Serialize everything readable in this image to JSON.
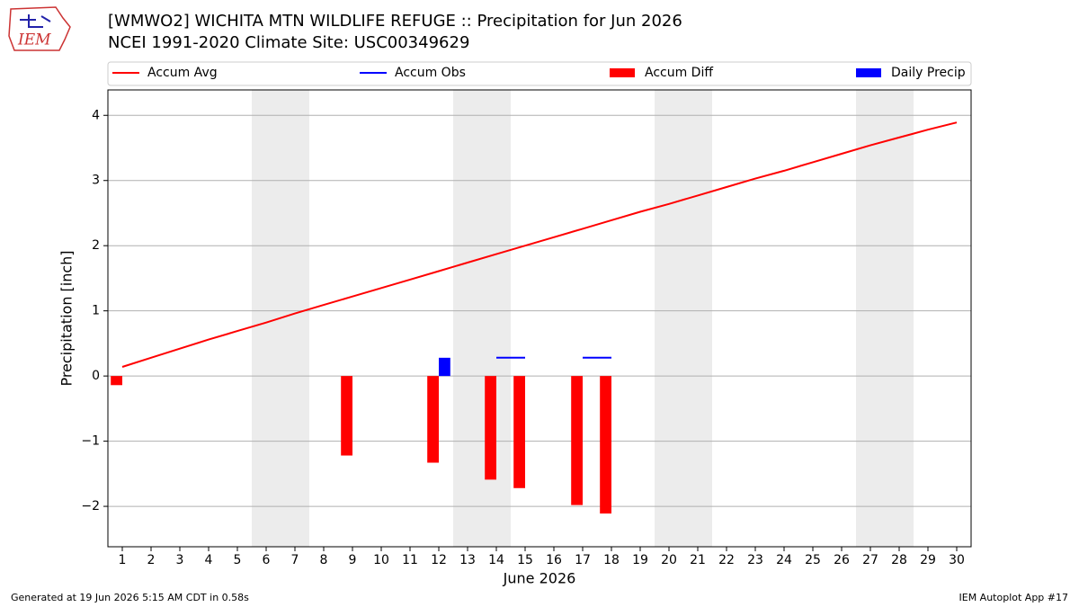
{
  "chart_data": {
    "type": "combo",
    "title": "[WMWO2] WICHITA MTN WILDLIFE REFUGE :: Precipitation for Jun 2026",
    "subtitle": "NCEI 1991-2020 Climate Site: USC00349629",
    "y_label": "Precipitation [inch]",
    "x_label": "June 2026",
    "logo_text": "IEM",
    "footer_left": "Generated at 19 Jun 2026 5:15 AM CDT in 0.58s",
    "footer_right": "IEM Autoplot App #17",
    "legend_loc": "upper center",
    "grid": true,
    "x": [
      1,
      2,
      3,
      4,
      5,
      6,
      7,
      8,
      9,
      10,
      11,
      12,
      13,
      14,
      15,
      16,
      17,
      18,
      19,
      20,
      21,
      22,
      23,
      24,
      25,
      26,
      27,
      28,
      29,
      30
    ],
    "xlim": [
      0.5,
      30.5
    ],
    "xticks": [
      1,
      2,
      3,
      4,
      5,
      6,
      7,
      8,
      9,
      10,
      11,
      12,
      13,
      14,
      15,
      16,
      17,
      18,
      19,
      20,
      21,
      22,
      23,
      24,
      25,
      26,
      27,
      28,
      29,
      30
    ],
    "ylim": [
      -2.62,
      4.39
    ],
    "yticks": [
      {
        "value": -2,
        "label": "−2"
      },
      {
        "value": -1,
        "label": "−1"
      },
      0,
      1,
      2,
      3,
      4
    ],
    "series": [
      {
        "name": "Accum Avg",
        "type": "line",
        "color": "#ff0000",
        "values": [
          0.14,
          0.28,
          0.42,
          0.56,
          0.69,
          0.82,
          0.96,
          1.09,
          1.22,
          1.35,
          1.48,
          1.61,
          1.74,
          1.87,
          2.0,
          2.13,
          2.26,
          2.39,
          2.52,
          2.64,
          2.77,
          2.9,
          3.03,
          3.15,
          3.28,
          3.41,
          3.54,
          3.66,
          3.78,
          3.89
        ]
      },
      {
        "name": "Accum Obs",
        "type": "line",
        "color": "#0000ff",
        "values": [
          0,
          null,
          null,
          null,
          null,
          null,
          null,
          null,
          0,
          null,
          null,
          0.28,
          null,
          0.28,
          0.28,
          null,
          0.28,
          0.28,
          null,
          null,
          null,
          null,
          null,
          null,
          null,
          null,
          null,
          null,
          null,
          null
        ]
      },
      {
        "name": "Accum Diff",
        "type": "bar",
        "offset": "left",
        "color": "#ff0000",
        "values": [
          -0.14,
          null,
          null,
          null,
          null,
          null,
          null,
          null,
          -1.22,
          null,
          null,
          -1.33,
          null,
          -1.59,
          -1.72,
          null,
          -1.98,
          -2.11,
          null,
          null,
          null,
          null,
          null,
          null,
          null,
          null,
          null,
          null,
          null,
          null
        ]
      },
      {
        "name": "Daily Precip",
        "type": "bar",
        "offset": "right",
        "color": "#0000ff",
        "values": [
          0,
          null,
          null,
          null,
          null,
          null,
          null,
          null,
          0,
          null,
          null,
          0.28,
          null,
          0,
          0,
          null,
          0,
          0,
          null,
          null,
          null,
          null,
          null,
          null,
          null,
          null,
          null,
          null,
          null,
          null
        ]
      }
    ]
  }
}
